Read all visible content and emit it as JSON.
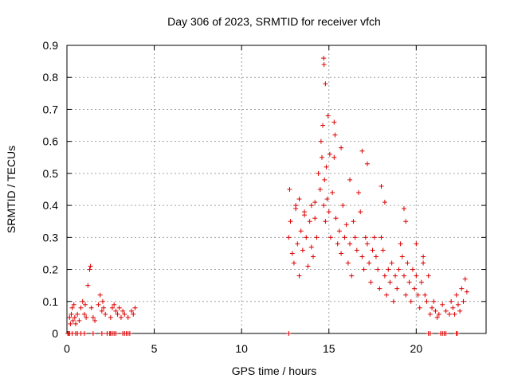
{
  "chart_data": {
    "type": "scatter",
    "title": "Day 306 of 2023, SRMTID for receiver vfch",
    "xlabel": "GPS time / hours",
    "ylabel": "SRMTID / TECUs",
    "xlim": [
      0,
      24
    ],
    "ylim": [
      0,
      0.9
    ],
    "xticks": [
      0,
      5,
      10,
      15,
      20
    ],
    "yticks": [
      0,
      0.1,
      0.2,
      0.3,
      0.4,
      0.5,
      0.6,
      0.7,
      0.8,
      0.9
    ],
    "xtick_labels": [
      "0",
      "5",
      "10",
      "15",
      "20"
    ],
    "ytick_labels": [
      "0",
      "0.1",
      "0.2",
      "0.3",
      "0.4",
      "0.5",
      "0.6",
      "0.7",
      "0.8",
      "0.9"
    ],
    "grid": true,
    "marker": "+",
    "marker_color": "#dd0000",
    "series": [
      {
        "name": "SRMTID",
        "x": [
          0.15,
          0.2,
          0.25,
          0.3,
          0.35,
          0.4,
          0.45,
          0.5,
          0.6,
          0.7,
          0.8,
          0.9,
          1.0,
          1.05,
          1.1,
          1.2,
          1.3,
          1.35,
          1.4,
          1.5,
          1.6,
          1.8,
          1.9,
          2.0,
          2.05,
          2.1,
          2.2,
          2.5,
          2.6,
          2.7,
          2.8,
          2.9,
          3.0,
          3.1,
          3.2,
          3.3,
          3.5,
          3.7,
          3.8,
          3.9,
          12.7,
          12.8,
          12.9,
          13.0,
          13.1,
          13.2,
          13.3,
          13.4,
          13.5,
          13.6,
          13.7,
          13.8,
          13.9,
          14.0,
          14.1,
          14.2,
          14.3,
          14.4,
          14.5,
          14.55,
          14.6,
          14.65,
          14.7,
          14.75,
          14.8,
          14.85,
          14.9,
          15.0,
          15.1,
          15.2,
          15.3,
          15.4,
          15.5,
          15.6,
          15.7,
          15.8,
          15.9,
          16.0,
          16.1,
          16.2,
          16.3,
          16.4,
          16.5,
          16.6,
          16.7,
          16.8,
          16.9,
          17.0,
          17.1,
          17.2,
          17.3,
          17.4,
          17.5,
          17.6,
          17.7,
          17.8,
          17.9,
          18.0,
          18.1,
          18.2,
          18.3,
          18.4,
          18.5,
          18.6,
          18.7,
          18.8,
          18.9,
          19.0,
          19.1,
          19.2,
          19.3,
          19.4,
          19.5,
          19.6,
          19.7,
          19.8,
          19.9,
          20.0,
          20.1,
          20.2,
          20.3,
          20.4,
          20.5,
          20.6,
          20.7,
          20.8,
          20.9,
          21.0,
          21.1,
          21.2,
          21.3,
          21.5,
          21.7,
          21.9,
          22.0,
          22.1,
          22.2,
          22.3,
          22.4,
          22.5,
          22.6,
          22.7,
          22.8,
          22.9,
          12.75,
          14.7,
          14.72,
          14.8,
          14.95,
          15.05,
          15.3,
          15.35,
          13.1,
          13.3,
          13.6,
          14.0,
          14.2,
          15.7,
          16.2,
          16.9,
          17.2,
          18.0,
          18.2,
          19.3,
          19.4,
          20.0,
          20.4,
          0.05,
          0.1,
          0.15,
          0.3,
          0.5,
          0.6,
          0.8,
          1.0,
          1.5,
          2.0,
          2.3,
          2.45,
          2.5,
          2.6,
          2.7,
          2.8,
          3.2,
          3.3,
          3.4,
          3.5,
          3.6,
          12.7,
          20.7,
          20.8,
          21.4,
          21.5,
          21.6,
          21.7,
          22.3,
          22.35
        ],
        "y": [
          0.05,
          0.03,
          0.06,
          0.08,
          0.04,
          0.09,
          0.05,
          0.03,
          0.06,
          0.04,
          0.08,
          0.1,
          0.06,
          0.09,
          0.05,
          0.15,
          0.2,
          0.21,
          0.08,
          0.05,
          0.04,
          0.09,
          0.12,
          0.07,
          0.1,
          0.08,
          0.06,
          0.05,
          0.08,
          0.09,
          0.07,
          0.06,
          0.08,
          0.05,
          0.07,
          0.06,
          0.05,
          0.07,
          0.06,
          0.08,
          0.3,
          0.35,
          0.25,
          0.22,
          0.4,
          0.28,
          0.18,
          0.32,
          0.26,
          0.38,
          0.3,
          0.21,
          0.35,
          0.27,
          0.24,
          0.36,
          0.3,
          0.5,
          0.45,
          0.6,
          0.55,
          0.65,
          0.4,
          0.48,
          0.35,
          0.52,
          0.42,
          0.38,
          0.3,
          0.44,
          0.55,
          0.36,
          0.28,
          0.32,
          0.25,
          0.4,
          0.3,
          0.34,
          0.22,
          0.28,
          0.18,
          0.35,
          0.3,
          0.26,
          0.44,
          0.38,
          0.24,
          0.2,
          0.3,
          0.28,
          0.22,
          0.16,
          0.26,
          0.3,
          0.24,
          0.2,
          0.14,
          0.3,
          0.26,
          0.18,
          0.12,
          0.2,
          0.16,
          0.22,
          0.1,
          0.18,
          0.14,
          0.2,
          0.28,
          0.24,
          0.18,
          0.12,
          0.22,
          0.16,
          0.1,
          0.2,
          0.14,
          0.18,
          0.12,
          0.08,
          0.16,
          0.22,
          0.12,
          0.1,
          0.18,
          0.06,
          0.08,
          0.1,
          0.07,
          0.05,
          0.06,
          0.09,
          0.07,
          0.06,
          0.1,
          0.08,
          0.06,
          0.12,
          0.09,
          0.07,
          0.14,
          0.1,
          0.17,
          0.13,
          0.45,
          0.86,
          0.84,
          0.78,
          0.68,
          0.56,
          0.66,
          0.62,
          0.39,
          0.42,
          0.37,
          0.4,
          0.41,
          0.58,
          0.48,
          0.57,
          0.53,
          0.46,
          0.41,
          0.39,
          0.35,
          0.28,
          0.24,
          0,
          0,
          0,
          0,
          0,
          0,
          0,
          0,
          0,
          0,
          0,
          0,
          0,
          0,
          0,
          0,
          0,
          0,
          0,
          0,
          0,
          0,
          0,
          0,
          0,
          0,
          0,
          0,
          0,
          0
        ]
      }
    ]
  }
}
